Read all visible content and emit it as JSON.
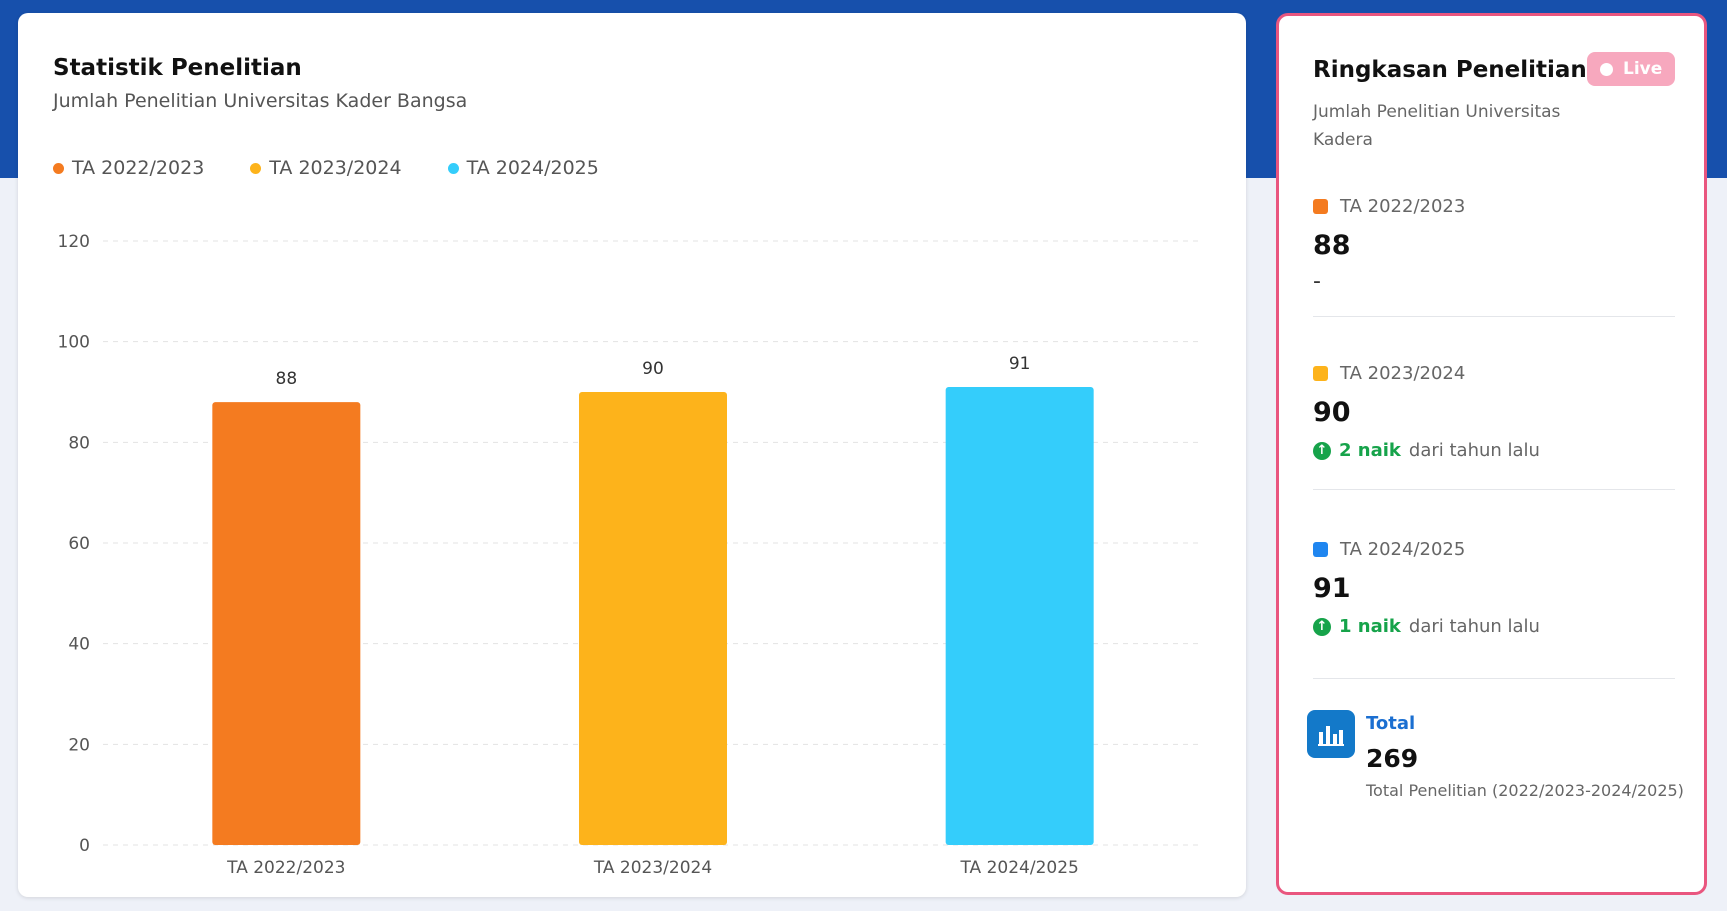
{
  "chart_panel": {
    "title": "Statistik Penelitian",
    "subtitle": "Jumlah Penelitian Universitas Kader Bangsa"
  },
  "chart_data": {
    "type": "bar",
    "categories": [
      "TA 2022/2023",
      "TA 2023/2024",
      "TA 2024/2025"
    ],
    "values": [
      88,
      90,
      91
    ],
    "colors": [
      "#f47b20",
      "#fdb31b",
      "#34cdfb"
    ],
    "legend": [
      {
        "label": "TA 2022/2023",
        "color": "#f47b20"
      },
      {
        "label": "TA 2023/2024",
        "color": "#fdb31b"
      },
      {
        "label": "TA 2024/2025",
        "color": "#34cdfb"
      }
    ],
    "legend_position": "top-left",
    "yticks": [
      "0",
      "20",
      "40",
      "60",
      "80",
      "100",
      "120"
    ],
    "ylim": [
      0,
      120
    ],
    "grid": true,
    "data_labels": true
  },
  "summary": {
    "title": "Ringkasan Penelitian",
    "badge": "Live",
    "subtitle": "Jumlah Penelitian Universitas Kadera",
    "items": [
      {
        "label": "TA 2022/2023",
        "value": "88",
        "color": "#f47b20",
        "change": "-"
      },
      {
        "label": "TA 2023/2024",
        "value": "90",
        "color": "#fdb31b",
        "change_amount": "2 naik",
        "change_text": "dari tahun lalu",
        "change_icon": "arrow-up-circle-icon"
      },
      {
        "label": "TA 2024/2025",
        "value": "91",
        "color": "#1f86f0",
        "change_amount": "1 naik",
        "change_text": "dari tahun lalu",
        "change_icon": "arrow-up-circle-icon"
      }
    ],
    "total": {
      "label": "Total",
      "value": "269",
      "description": "Total Penelitian (2022/2023-2024/2025)",
      "icon": "bar-chart-icon"
    }
  }
}
